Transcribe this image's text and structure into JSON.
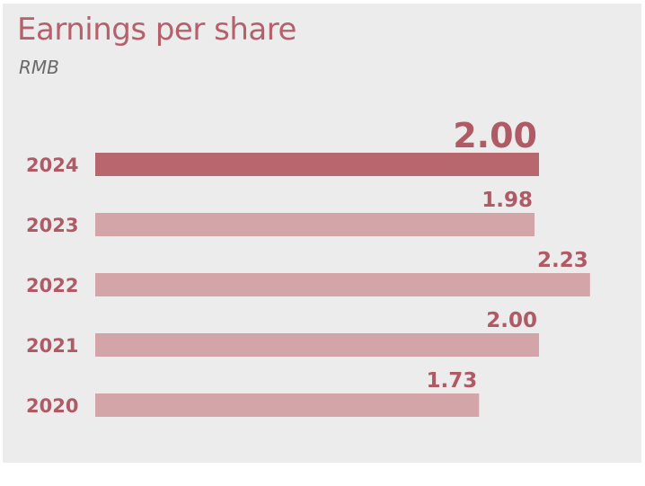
{
  "title": "Earnings per share",
  "unit": "RMB",
  "colors": {
    "background": "#ececec",
    "title": "#b5606a",
    "highlight_bar": "#b8676e",
    "bar": "#d4a5a8",
    "year_label": "#b05a65",
    "value_label": "#b05a65",
    "unit_label": "#6a6a6a"
  },
  "chart_data": {
    "type": "bar",
    "orientation": "horizontal",
    "title": "Earnings per share",
    "subtitle": "RMB",
    "categories": [
      "2024",
      "2023",
      "2022",
      "2021",
      "2020"
    ],
    "values": [
      2.0,
      1.98,
      2.23,
      2.0,
      1.73
    ],
    "value_labels": [
      "2.00",
      "1.98",
      "2.23",
      "2.00",
      "1.73"
    ],
    "highlight": "2024",
    "xlim": [
      0,
      2.23
    ],
    "grid": false,
    "legend": "none"
  }
}
